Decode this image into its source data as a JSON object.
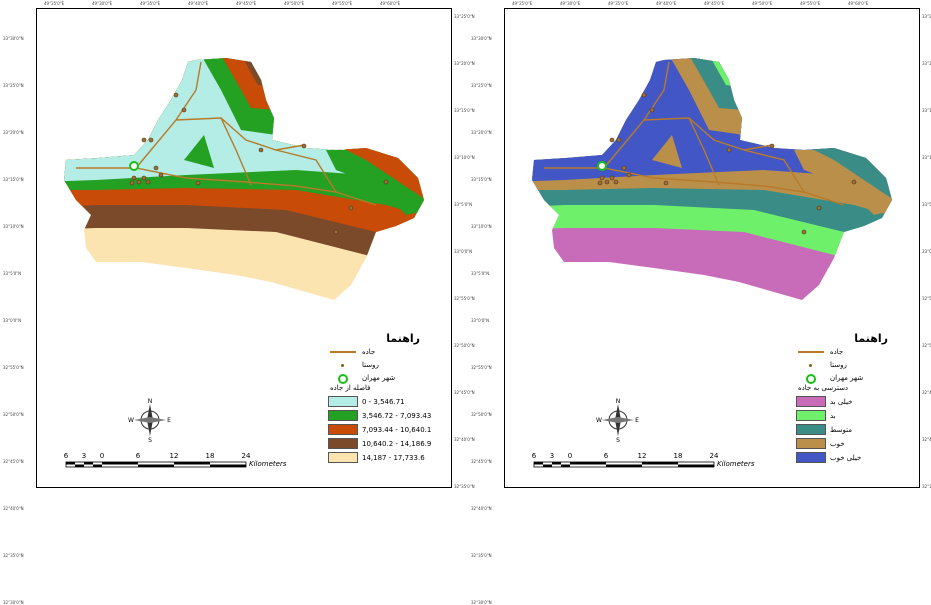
{
  "coords": {
    "top": [
      "49°25'0\"E",
      "49°30'0\"E",
      "49°35'0\"E",
      "49°40'0\"E",
      "49°45'0\"E",
      "49°50'0\"E",
      "49°55'0\"E",
      "49°60'0\"E"
    ],
    "left": [
      "33°30'0\"N",
      "33°25'0\"N",
      "33°20'0\"N",
      "33°15'0\"N",
      "33°10'0\"N",
      "33°5'0\"N",
      "33°0'0\"N",
      "32°55'0\"N",
      "32°50'0\"N",
      "32°45'0\"N",
      "32°40'0\"N",
      "32°35'0\"N",
      "32°30'0\"N"
    ],
    "right": [
      "33°25'0\"N",
      "33°20'0\"N",
      "33°15'0\"N",
      "33°10'0\"N",
      "33°5'0\"N",
      "33°0'0\"N",
      "32°55'0\"N",
      "32°50'0\"N",
      "32°45'0\"N",
      "32°40'0\"N",
      "32°35'0\"N"
    ]
  },
  "left_map": {
    "legend_title": "راهنما",
    "road_label": "جاده",
    "village_label": "روستا",
    "city_label": "شهر مهران",
    "subtitle": "فاصله از جاده",
    "classes": [
      {
        "label": "0 - 3,546.71",
        "color": "#b3ede6"
      },
      {
        "label": "3,546.72 - 7,093.43",
        "color": "#24a023"
      },
      {
        "label": "7,093.44 - 10,640.1",
        "color": "#c84b08"
      },
      {
        "label": "10,640.2 - 14,186.9",
        "color": "#7a4a2a"
      },
      {
        "label": "14,187 - 17,733.6",
        "color": "#fce4b0"
      }
    ],
    "scale_numbers": [
      "6",
      "3",
      "0",
      "6",
      "12",
      "18",
      "24"
    ],
    "scale_unit": "Kilometers",
    "compass": {
      "n": "N",
      "s": "S",
      "e": "E",
      "w": "W"
    }
  },
  "right_map": {
    "legend_title": "راهنما",
    "road_label": "جاده",
    "village_label": "روستا",
    "city_label": "شهر مهران",
    "subtitle": "دسترسی به جاده",
    "classes": [
      {
        "label": "خیلی بد",
        "color": "#c86cb9"
      },
      {
        "label": "بد",
        "color": "#6ef06b"
      },
      {
        "label": "متوسط",
        "color": "#3a8c86"
      },
      {
        "label": "خوب",
        "color": "#b98f4a"
      },
      {
        "label": "خیلی خوب",
        "color": "#4256c6"
      }
    ],
    "scale_numbers": [
      "6",
      "3",
      "0",
      "6",
      "12",
      "18",
      "24"
    ],
    "scale_unit": "Kilometers",
    "compass": {
      "n": "N",
      "s": "S",
      "e": "E",
      "w": "W"
    }
  },
  "colors": {
    "road": "#b87a28",
    "village": "#8a5a1a",
    "city_ring": "#18c018"
  }
}
